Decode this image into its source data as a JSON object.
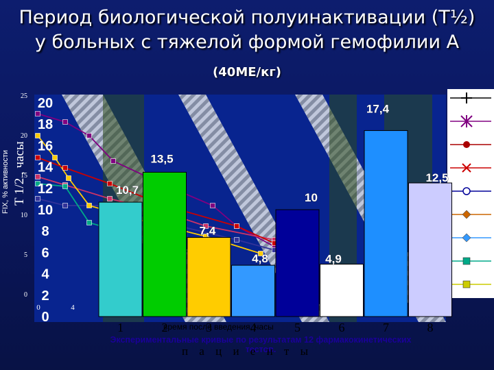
{
  "slide": {
    "title_line1": "Период биологической полуинактивации (T½)",
    "title_line2": "у больных с тяжелой формой гемофилии А",
    "dose": "(40МЕ/кг)",
    "caption_line1": "Экспериментальные кривые по результатам 12 фармакокинетических",
    "caption_line2": "тестов.",
    "overlay_xlabel": "время после введения, часы",
    "overlay_ylabel": "FIX, % активности",
    "colors": {
      "background": "#0a165a",
      "plot_bg": "#08248f",
      "stripe": "#3a5a20",
      "text": "#ffffff",
      "caption": "#1a0099"
    }
  },
  "chart_data": {
    "type": "bar",
    "categories": [
      "1",
      "2",
      "3",
      "4",
      "5",
      "6",
      "7",
      "8"
    ],
    "values": [
      10.7,
      13.5,
      7.4,
      4.8,
      10,
      4.9,
      17.4,
      12.5
    ],
    "data_labels": [
      "10,7",
      "13,5",
      "7,4",
      "4,8",
      "10",
      "4,9",
      "17,4",
      "12,5"
    ],
    "bar_colors": [
      "#33cccc",
      "#00cc00",
      "#ffcc00",
      "#3399ff",
      "#000099",
      "#ffffff",
      "#1e8fff",
      "#ccccff"
    ],
    "title": "Период биологической полуинактивации (T½) у больных с тяжелой формой гемофилии А (40МЕ/кг)",
    "xlabel": "п а ц и е н т ы",
    "ylabel": "T 1/2 , часы",
    "yticks": [
      "0",
      "2",
      "4",
      "6",
      "8",
      "10",
      "12",
      "14",
      "16",
      "18",
      "20"
    ],
    "ylim": [
      0,
      20
    ],
    "grid": false,
    "legend": "right",
    "overlay_yticks": [
      "0",
      "5",
      "10",
      "15",
      "20",
      "25"
    ],
    "overlay_xticks": [
      "0",
      "4"
    ]
  }
}
